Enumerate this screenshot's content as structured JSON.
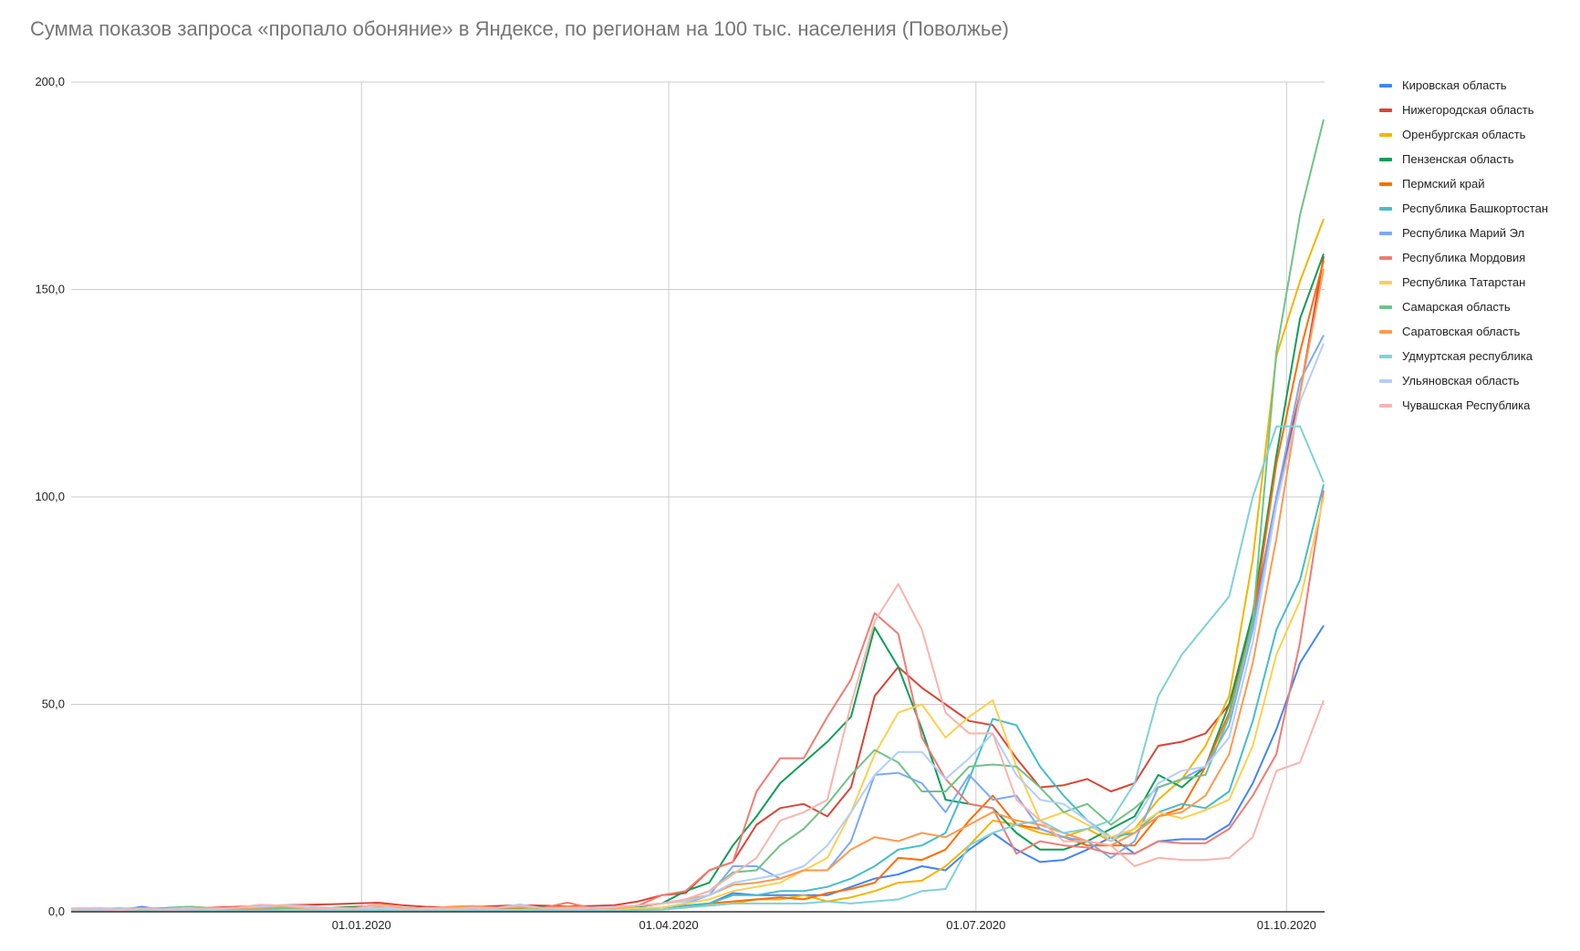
{
  "chart_data": {
    "type": "line",
    "title": "Сумма показов запроса «пропало обоняние» в Яндексе, по регионам на 100 тыс. населения (Поволжье)",
    "xlabel": "",
    "ylabel": "",
    "ylim": [
      0,
      200
    ],
    "y_ticks": [
      "0,0",
      "50,0",
      "100,0",
      "150,0",
      "200,0"
    ],
    "y_tick_values": [
      0,
      50,
      100,
      150,
      200
    ],
    "x_ticks": [
      {
        "label": "01.01.2020",
        "date": "2020-01-01"
      },
      {
        "label": "01.04.2020",
        "date": "2020-04-01"
      },
      {
        "label": "01.07.2020",
        "date": "2020-07-01"
      },
      {
        "label": "01.10.2020",
        "date": "2020-10-01"
      }
    ],
    "x_range": [
      "2019-10-07",
      "2020-10-12"
    ],
    "grid": true,
    "legend": "right",
    "x": [
      "2019-10-07",
      "2019-10-14",
      "2019-10-21",
      "2019-10-28",
      "2019-11-04",
      "2019-11-11",
      "2019-11-18",
      "2019-11-25",
      "2019-12-02",
      "2019-12-09",
      "2019-12-16",
      "2019-12-23",
      "2019-12-30",
      "2020-01-06",
      "2020-01-13",
      "2020-01-20",
      "2020-01-27",
      "2020-02-03",
      "2020-02-10",
      "2020-02-17",
      "2020-02-24",
      "2020-03-02",
      "2020-03-09",
      "2020-03-16",
      "2020-03-23",
      "2020-03-30",
      "2020-04-06",
      "2020-04-13",
      "2020-04-20",
      "2020-04-27",
      "2020-05-04",
      "2020-05-11",
      "2020-05-18",
      "2020-05-25",
      "2020-06-01",
      "2020-06-08",
      "2020-06-15",
      "2020-06-22",
      "2020-06-29",
      "2020-07-06",
      "2020-07-13",
      "2020-07-20",
      "2020-07-27",
      "2020-08-03",
      "2020-08-10",
      "2020-08-17",
      "2020-08-24",
      "2020-08-31",
      "2020-09-07",
      "2020-09-14",
      "2020-09-21",
      "2020-09-28",
      "2020-10-05",
      "2020-10-12"
    ],
    "series": [
      {
        "name": "Кировская область",
        "color": "#4285f4",
        "values": [
          0.3,
          0.4,
          0.3,
          1.2,
          0.3,
          0.2,
          0.4,
          0.3,
          0.5,
          0.4,
          0.3,
          0.6,
          0.4,
          0.5,
          0.3,
          0.4,
          0.6,
          0.3,
          0.4,
          0.5,
          1.4,
          0.4,
          0.3,
          0.5,
          0.8,
          1,
          1.5,
          2,
          4.5,
          4,
          4,
          4,
          4,
          6,
          8,
          9,
          11,
          10,
          15,
          19,
          15,
          12,
          12.5,
          15,
          18,
          14,
          17,
          17.5,
          17.5,
          21,
          31,
          44,
          60,
          69
        ]
      },
      {
        "name": "Нижегородская область",
        "color": "#db4437",
        "values": [
          0.5,
          0.5,
          0.6,
          0.8,
          0.7,
          0.8,
          1.0,
          1.2,
          1.4,
          1.6,
          1.7,
          1.8,
          2.0,
          2.2,
          1.6,
          1.2,
          1.0,
          1.2,
          1.4,
          1.6,
          1.5,
          1.3,
          1.4,
          1.6,
          2.5,
          4,
          4.5,
          10,
          12,
          21,
          25,
          26,
          23,
          30,
          52,
          59,
          54,
          50,
          46,
          45,
          37,
          30,
          30.5,
          32,
          29,
          31,
          40,
          41,
          43,
          50,
          70,
          100,
          125,
          158
        ]
      },
      {
        "name": "Оренбургская область",
        "color": "#f4b400",
        "values": [
          0.3,
          0.2,
          0.4,
          0.3,
          0.5,
          0.3,
          0.4,
          0.6,
          0.5,
          0.4,
          0.3,
          0.5,
          0.8,
          1.2,
          0.5,
          0.4,
          0.6,
          0.5,
          0.3,
          0.8,
          0.6,
          0.4,
          0.5,
          0.6,
          0.8,
          1,
          1.5,
          1.5,
          2,
          3,
          3,
          4,
          2.5,
          3.5,
          5,
          7,
          7.5,
          11,
          16,
          22,
          21,
          19,
          18,
          20,
          17,
          20,
          27,
          32,
          40,
          52,
          85,
          134,
          152,
          167
        ]
      },
      {
        "name": "Пензенская область",
        "color": "#0f9d58",
        "values": [
          0.5,
          0.6,
          0.8,
          0.7,
          0.9,
          1.2,
          0.8,
          0.6,
          0.9,
          0.8,
          0.7,
          1.0,
          1.2,
          1.4,
          0.8,
          0.6,
          0.7,
          0.9,
          0.8,
          1.0,
          1.2,
          0.9,
          0.8,
          1.0,
          1.2,
          2,
          5,
          7,
          16,
          23,
          31,
          36,
          41,
          47,
          68.5,
          59,
          44,
          27,
          26,
          25,
          19,
          15,
          15,
          17,
          20,
          23,
          33,
          30,
          35,
          50,
          72,
          110,
          143,
          158.6
        ]
      },
      {
        "name": "Пермский край",
        "color": "#ff6d01",
        "values": [
          0.2,
          0.3,
          0.2,
          0.4,
          0.3,
          0.5,
          0.4,
          0.3,
          0.6,
          0.5,
          0.4,
          0.6,
          0.5,
          0.8,
          0.4,
          0.6,
          0.5,
          0.7,
          0.9,
          0.6,
          0.5,
          0.8,
          0.7,
          0.6,
          0.8,
          1,
          1.5,
          2,
          2.5,
          3,
          3.5,
          3,
          4.5,
          5.5,
          7,
          13,
          12.5,
          15,
          22,
          28,
          21,
          20,
          18,
          16,
          16,
          16,
          23,
          25,
          35,
          48,
          70,
          108,
          135,
          157
        ]
      },
      {
        "name": "Республика Башкортостан",
        "color": "#46bdc6",
        "values": [
          0.2,
          0.3,
          0.2,
          0.3,
          0.2,
          0.4,
          0.3,
          0.2,
          0.3,
          0.4,
          0.3,
          0.4,
          0.5,
          0.3,
          0.4,
          0.3,
          0.2,
          0.4,
          0.3,
          0.5,
          0.4,
          0.3,
          0.4,
          0.5,
          0.7,
          1,
          1.5,
          2,
          4,
          4,
          5,
          5,
          6,
          8,
          11,
          15,
          16,
          19,
          32,
          46.5,
          45,
          35,
          28,
          22,
          18,
          19,
          24,
          26,
          25,
          29,
          46,
          68,
          80,
          103
        ]
      },
      {
        "name": "Республика Марий Эл",
        "color": "#7baaf7",
        "values": [
          0.4,
          0.3,
          0.5,
          0.4,
          0.3,
          0.6,
          0.5,
          0.4,
          0.3,
          0.5,
          0.4,
          0.6,
          0.5,
          0.4,
          0.3,
          0.5,
          0.6,
          0.4,
          0.5,
          0.3,
          0.4,
          0.5,
          0.6,
          0.4,
          0.8,
          1,
          2,
          4,
          11,
          11,
          8,
          10,
          10,
          17,
          33,
          33.5,
          31,
          24,
          33,
          27,
          28,
          20,
          18,
          17,
          13,
          17,
          30,
          32,
          35,
          45,
          68,
          100,
          128,
          139
        ]
      },
      {
        "name": "Республика Мордовия",
        "color": "#f07b72",
        "values": [
          0.6,
          0.5,
          0.4,
          0.6,
          0.8,
          0.5,
          0.7,
          0.9,
          1.5,
          1.2,
          0.8,
          1.0,
          0.9,
          1.4,
          0.8,
          0.6,
          0.9,
          0.7,
          0.8,
          1.2,
          1.0,
          2.2,
          0.9,
          1.1,
          1.5,
          4,
          5,
          10,
          12,
          29,
          37,
          37,
          47,
          56,
          72,
          67,
          42,
          32,
          26,
          25,
          14,
          17,
          16,
          15.5,
          14,
          14,
          17,
          16.5,
          16.5,
          20,
          28,
          38,
          65,
          101.6
        ]
      },
      {
        "name": "Республика Татарстан",
        "color": "#fcd04f",
        "values": [
          0.3,
          0.4,
          0.3,
          0.5,
          0.4,
          0.3,
          0.5,
          0.4,
          0.6,
          0.5,
          0.4,
          0.5,
          0.7,
          0.6,
          0.5,
          0.4,
          0.5,
          0.6,
          0.4,
          0.5,
          0.6,
          0.5,
          0.4,
          0.6,
          0.9,
          1,
          2,
          3,
          5,
          6,
          7,
          10,
          13,
          24,
          38,
          48,
          50,
          42,
          47,
          51,
          35,
          22,
          24,
          21,
          18,
          20,
          24,
          22.5,
          24.5,
          27,
          40,
          62,
          75,
          100
        ]
      },
      {
        "name": "Самарская область",
        "color": "#71c287",
        "values": [
          0.8,
          0.9,
          0.7,
          0.9,
          0.8,
          1.2,
          0.9,
          0.7,
          0.6,
          0.8,
          0.9,
          1.0,
          0.8,
          1.6,
          1.0,
          0.8,
          0.9,
          0.7,
          0.9,
          1.1,
          0.8,
          0.9,
          1.0,
          0.8,
          1.5,
          2,
          3,
          5,
          9.5,
          10,
          16,
          20,
          26,
          33,
          39,
          36,
          29,
          29,
          35,
          35.5,
          35,
          30,
          24,
          26,
          21,
          25,
          30,
          32,
          33,
          47,
          70,
          135,
          168,
          191
        ]
      },
      {
        "name": "Саратовская область",
        "color": "#ff994d",
        "values": [
          0.4,
          0.5,
          0.3,
          0.6,
          0.5,
          0.4,
          0.8,
          0.6,
          0.9,
          1.2,
          0.8,
          0.7,
          0.9,
          1.8,
          0.9,
          0.7,
          1.2,
          1.4,
          1.0,
          1.2,
          0.9,
          1.2,
          1.0,
          0.8,
          1.5,
          2,
          3,
          4,
          6.5,
          7,
          8,
          10,
          10,
          15,
          18,
          17,
          19,
          18,
          21,
          24,
          22,
          21,
          19,
          17,
          16,
          19,
          23,
          24,
          28,
          38,
          60,
          90,
          125,
          155
        ]
      },
      {
        "name": "Удмуртская республика",
        "color": "#7ed1d7",
        "values": [
          0.2,
          0.3,
          0.2,
          0.2,
          0.3,
          0.2,
          0.3,
          0.2,
          0.3,
          0.2,
          0.3,
          0.2,
          0.3,
          0.4,
          0.2,
          0.3,
          0.2,
          0.3,
          0.2,
          0.3,
          0.4,
          0.2,
          0.3,
          0.2,
          0.4,
          0.5,
          1,
          1.5,
          2,
          2,
          2,
          2,
          2.5,
          2,
          2.5,
          3,
          5,
          5.5,
          16,
          19,
          21,
          22,
          19,
          20,
          22,
          31,
          52,
          62,
          69,
          76,
          100,
          117,
          117,
          103.5
        ]
      },
      {
        "name": "Ульяновская область",
        "color": "#b3cefb",
        "values": [
          0.8,
          0.9,
          0.6,
          0.8,
          0.7,
          0.9,
          0.6,
          1.0,
          1.2,
          1.6,
          1.4,
          1.0,
          0.8,
          1.0,
          0.7,
          0.9,
          0.8,
          1.0,
          0.9,
          1.8,
          0.8,
          0.9,
          1.0,
          1.2,
          1.5,
          2,
          2.5,
          4,
          7,
          8,
          9,
          11,
          16,
          24,
          33,
          38.5,
          38.5,
          32,
          37,
          43,
          33,
          27,
          26,
          22,
          17,
          22,
          31,
          34,
          35,
          42,
          65,
          98,
          123,
          137
        ]
      },
      {
        "name": "Чувашская Республика",
        "color": "#f7b4ae",
        "values": [
          0.5,
          0.6,
          0.4,
          0.7,
          0.5,
          0.6,
          0.8,
          1.0,
          1.7,
          1.5,
          0.9,
          0.7,
          0.8,
          1.6,
          0.7,
          0.6,
          0.8,
          0.7,
          0.9,
          1.5,
          0.8,
          0.7,
          0.9,
          1.0,
          1.5,
          2,
          3,
          5,
          9,
          13,
          22,
          24,
          27,
          50,
          70,
          79,
          68,
          48,
          43,
          43,
          27,
          22,
          17,
          17,
          16,
          11,
          13,
          12.5,
          12.5,
          13,
          18,
          34,
          36,
          51
        ]
      }
    ]
  }
}
